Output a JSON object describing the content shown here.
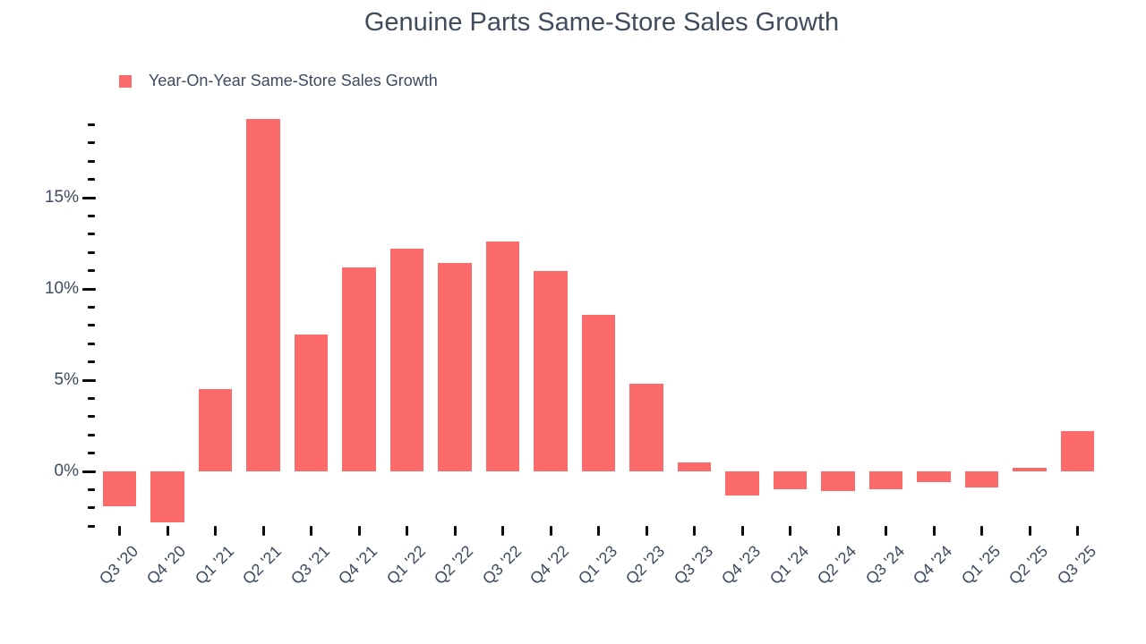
{
  "chart_data": {
    "type": "bar",
    "title": "Genuine Parts Same-Store Sales Growth",
    "categories": [
      "Q3 '20",
      "Q4 '20",
      "Q1 '21",
      "Q2 '21",
      "Q3 '21",
      "Q4 '21",
      "Q1 '22",
      "Q2 '22",
      "Q3 '22",
      "Q4 '22",
      "Q1 '23",
      "Q2 '23",
      "Q3 '23",
      "Q4 '23",
      "Q1 '24",
      "Q2 '24",
      "Q3 '24",
      "Q4 '24",
      "Q1 '25",
      "Q2 '25",
      "Q3 '25"
    ],
    "series": [
      {
        "name": "Year-On-Year Same-Store Sales Growth",
        "values": [
          -1.9,
          -2.8,
          4.5,
          19.3,
          7.5,
          11.2,
          12.2,
          11.4,
          12.6,
          11.0,
          8.6,
          4.8,
          0.5,
          -1.3,
          -1.0,
          -1.1,
          -1.0,
          -0.6,
          -0.9,
          0.2,
          2.2
        ],
        "color": "#FC6B6B"
      }
    ],
    "xlabel": "",
    "ylabel": "",
    "y_axis": {
      "range": [
        -3,
        19.3
      ],
      "unit": "%",
      "major_ticks": [
        {
          "value": 0,
          "label": "0%"
        },
        {
          "value": 5,
          "label": "5%"
        },
        {
          "value": 10,
          "label": "10%"
        },
        {
          "value": 15,
          "label": "15%"
        }
      ],
      "minor_tick_step": 1,
      "minor_tick_range": [
        -3,
        19
      ]
    },
    "grid": false,
    "legend_position": "top-left"
  },
  "colors": {
    "bar": "#FC6B6B",
    "title_text": "#404B5C",
    "axis_text": "#3D4A5F",
    "tick": "#0B0B0B",
    "background": "#FFFFFF"
  }
}
